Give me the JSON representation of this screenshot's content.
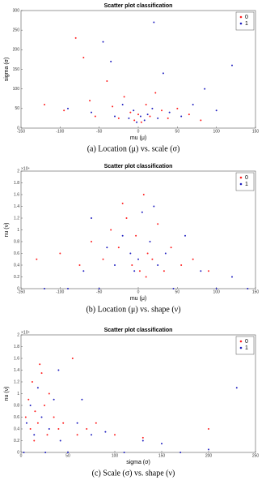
{
  "chart_data": [
    {
      "type": "scatter",
      "title": "Scatter plot classification",
      "x_label": "mu (μ)",
      "y_label": "sigma (σ)",
      "caption": "(a) Location (μ) vs. scale (σ)",
      "xlim": [
        -150,
        150
      ],
      "xticks": [
        -150,
        -100,
        -50,
        0,
        50,
        100,
        150
      ],
      "ylim": [
        0,
        300
      ],
      "yticks": [
        0,
        50,
        100,
        150,
        200,
        250,
        300
      ],
      "legend": "upper right",
      "series": [
        {
          "name": "0",
          "color": "#ff2020",
          "x": [
            -120,
            -95,
            -80,
            -62,
            -55,
            -40,
            -33,
            -25,
            -18,
            -10,
            -5,
            0,
            4,
            10,
            15,
            22,
            30,
            38,
            50,
            65,
            80,
            -70
          ],
          "y": [
            60,
            45,
            230,
            70,
            30,
            120,
            55,
            25,
            80,
            40,
            20,
            35,
            15,
            60,
            30,
            90,
            45,
            25,
            50,
            35,
            20,
            180
          ]
        },
        {
          "name": "1",
          "color": "#2020c0",
          "x": [
            -90,
            -60,
            -45,
            -30,
            -20,
            -12,
            -6,
            -2,
            3,
            8,
            12,
            18,
            25,
            32,
            40,
            55,
            70,
            85,
            100,
            120,
            20,
            -35
          ],
          "y": [
            50,
            40,
            220,
            30,
            60,
            25,
            45,
            15,
            30,
            20,
            35,
            50,
            25,
            140,
            40,
            30,
            60,
            100,
            45,
            160,
            270,
            170
          ]
        }
      ]
    },
    {
      "type": "scatter",
      "title": "Scatter plot classification",
      "x_label": "mu (μ)",
      "y_label": "nu (ν)",
      "y_multiplier": "×10⁴",
      "caption": "(b) Location (μ) vs. shape (ν)",
      "xlim": [
        -150,
        150
      ],
      "xticks": [
        -150,
        -100,
        -50,
        0,
        50,
        100,
        150
      ],
      "ylim": [
        0,
        2
      ],
      "yticks": [
        0,
        0.2,
        0.4,
        0.6,
        0.8,
        1,
        1.2,
        1.4,
        1.6,
        1.8,
        2
      ],
      "legend": "upper right",
      "series": [
        {
          "name": "0",
          "color": "#ff2020",
          "x": [
            -130,
            -100,
            -75,
            -60,
            -45,
            -35,
            -25,
            -15,
            -8,
            -3,
            2,
            7,
            12,
            18,
            25,
            33,
            42,
            55,
            70,
            90,
            -20,
            10
          ],
          "y": [
            0.5,
            0.6,
            0.4,
            0.8,
            0.5,
            1.0,
            0.7,
            1.2,
            0.4,
            0.9,
            0.3,
            1.6,
            0.6,
            0.5,
            1.1,
            0.3,
            0.7,
            0.4,
            0.5,
            0.3,
            1.45,
            0.2
          ]
        },
        {
          "name": "1",
          "color": "#2020c0",
          "x": [
            -120,
            -90,
            -70,
            -50,
            -40,
            -30,
            -20,
            -10,
            -5,
            0,
            5,
            15,
            25,
            35,
            45,
            60,
            80,
            100,
            120,
            140,
            -60,
            20
          ],
          "y": [
            0,
            0,
            0.3,
            0,
            0.7,
            0.4,
            0.9,
            0.6,
            0.3,
            0.5,
            1.3,
            0.8,
            0.4,
            0.6,
            0,
            0.9,
            0.3,
            0,
            0.2,
            0,
            1.2,
            1.4
          ]
        }
      ]
    },
    {
      "type": "scatter",
      "title": "Scatter plot classification",
      "x_label": "sigma (σ)",
      "y_label": "nu (ν)",
      "y_multiplier": "×10⁴",
      "caption": "(c) Scale (σ) vs. shape (ν)",
      "xlim": [
        0,
        250
      ],
      "xticks": [
        0,
        50,
        100,
        150,
        200,
        250
      ],
      "ylim": [
        0,
        2
      ],
      "yticks": [
        0,
        0.2,
        0.4,
        0.6,
        0.8,
        1,
        1.2,
        1.4,
        1.6,
        1.8,
        2
      ],
      "legend": "upper right",
      "series": [
        {
          "name": "0",
          "color": "#ff2020",
          "x": [
            5,
            8,
            10,
            12,
            15,
            18,
            20,
            25,
            28,
            30,
            35,
            40,
            45,
            55,
            60,
            70,
            80,
            100,
            130,
            200,
            22,
            14
          ],
          "y": [
            0.6,
            0.9,
            0.4,
            1.2,
            0.7,
            0.5,
            1.5,
            0.8,
            0.3,
            1.0,
            0.6,
            0.4,
            0.5,
            1.6,
            0.3,
            0.4,
            0.5,
            0.3,
            0.25,
            0.4,
            1.35,
            0.2
          ]
        },
        {
          "name": "1",
          "color": "#2020c0",
          "x": [
            3,
            6,
            10,
            14,
            18,
            22,
            26,
            30,
            35,
            42,
            50,
            60,
            75,
            90,
            110,
            130,
            150,
            170,
            200,
            230,
            40,
            65
          ],
          "y": [
            0,
            0.5,
            0.8,
            0.3,
            1.1,
            0.6,
            0,
            0.4,
            0.9,
            0.2,
            0,
            0.5,
            0.3,
            0.35,
            0,
            0.2,
            0.15,
            0,
            0.05,
            1.1,
            1.4,
            0.9
          ]
        }
      ]
    }
  ]
}
